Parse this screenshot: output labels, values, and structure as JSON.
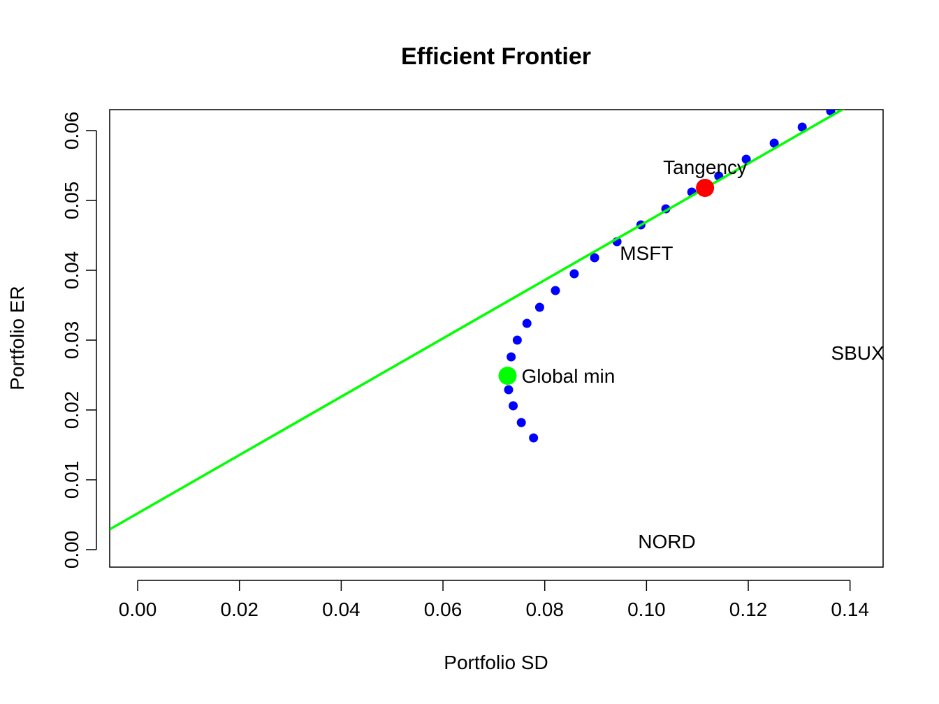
{
  "chart_data": {
    "type": "scatter",
    "title": "Efficient Frontier",
    "xlabel": "Portfolio SD",
    "ylabel": "Portfolio ER",
    "xlim": [
      -0.0055,
      0.1465
    ],
    "ylim": [
      -0.0025,
      0.063
    ],
    "xticks": [
      0.0,
      0.02,
      0.04,
      0.06,
      0.08,
      0.1,
      0.12,
      0.14
    ],
    "xtick_labels": [
      "0.00",
      "0.02",
      "0.04",
      "0.06",
      "0.08",
      "0.10",
      "0.12",
      "0.14"
    ],
    "yticks": [
      0.0,
      0.01,
      0.02,
      0.03,
      0.04,
      0.05,
      0.06
    ],
    "ytick_labels": [
      "0.00",
      "0.01",
      "0.02",
      "0.03",
      "0.04",
      "0.05",
      "0.06"
    ],
    "frontier": {
      "name": "Efficient frontier portfolios",
      "color": "#0000ff",
      "x": [
        0.0778,
        0.0754,
        0.0738,
        0.0729,
        0.0728,
        0.0734,
        0.0746,
        0.0765,
        0.079,
        0.0821,
        0.0858,
        0.0898,
        0.0942,
        0.0989,
        0.1038,
        0.1089,
        0.1142,
        0.1196,
        0.1251,
        0.1306,
        0.1362
      ],
      "y": [
        0.016,
        0.0182,
        0.0206,
        0.0229,
        0.0251,
        0.0276,
        0.03,
        0.0324,
        0.0347,
        0.0371,
        0.0395,
        0.0418,
        0.0441,
        0.0465,
        0.0488,
        0.0512,
        0.0535,
        0.0559,
        0.0582,
        0.0605,
        0.0628
      ]
    },
    "tangency_line": {
      "name": "Tangency line",
      "color": "#00ff00",
      "intercept": 0.0052,
      "slope": 0.4175
    },
    "special_points": [
      {
        "label": "Global min",
        "x": 0.0727,
        "y": 0.0249,
        "color": "#00ff00"
      },
      {
        "label": "Tangency",
        "x": 0.1115,
        "y": 0.0518,
        "color": "#ff0000"
      }
    ],
    "asset_labels": [
      {
        "label": "MSFT",
        "x": 0.1,
        "y": 0.0425
      },
      {
        "label": "NORD",
        "x": 0.104,
        "y": 0.0012
      },
      {
        "label": "SBUX",
        "x": 0.1415,
        "y": 0.0282
      }
    ]
  }
}
